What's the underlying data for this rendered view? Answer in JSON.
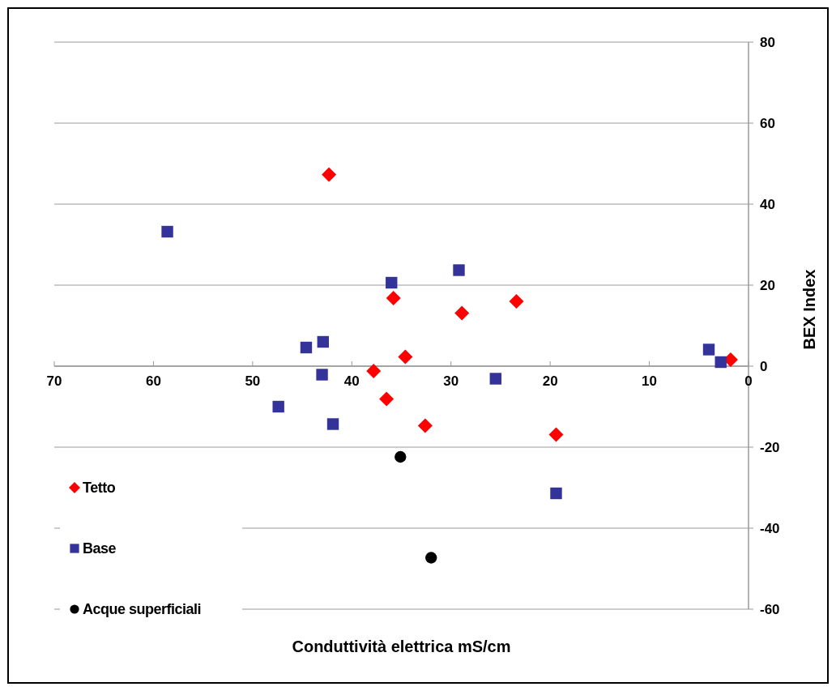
{
  "chart_data": {
    "type": "scatter",
    "xlabel": "Conduttività elettrica mS/cm",
    "ylabel": "BEX Index",
    "xlim": [
      70,
      0
    ],
    "ylim": [
      -60,
      80
    ],
    "xticks": [
      70,
      60,
      50,
      40,
      30,
      20,
      10,
      0
    ],
    "yticks": [
      -60,
      -40,
      -20,
      0,
      20,
      40,
      60,
      80
    ],
    "grid": "y",
    "legend": "bottom left",
    "series": [
      {
        "name": "Tetto",
        "color": "#ff0000",
        "marker": "diamond",
        "x": [
          42.3,
          35.8,
          34.6,
          37.8,
          36.5,
          32.6,
          28.9,
          23.4,
          19.4,
          1.8
        ],
        "values": [
          47.3,
          16.8,
          2.3,
          -1.2,
          -8.1,
          -14.7,
          13.1,
          16.0,
          -16.9,
          1.6
        ]
      },
      {
        "name": "Base",
        "color": "#333399",
        "marker": "square",
        "x": [
          58.6,
          36.0,
          44.6,
          42.9,
          43.0,
          47.4,
          41.9,
          29.2,
          25.5,
          19.4,
          4.0,
          2.8
        ],
        "values": [
          33.2,
          20.6,
          4.6,
          6.0,
          -2.1,
          -10.0,
          -14.3,
          23.7,
          -3.1,
          -31.4,
          4.1,
          1.0
        ]
      },
      {
        "name": "Acque superficiali",
        "color": "#000000",
        "marker": "circle",
        "x": [
          35.1,
          32.0
        ],
        "values": [
          -22.4,
          -47.3
        ]
      }
    ]
  }
}
